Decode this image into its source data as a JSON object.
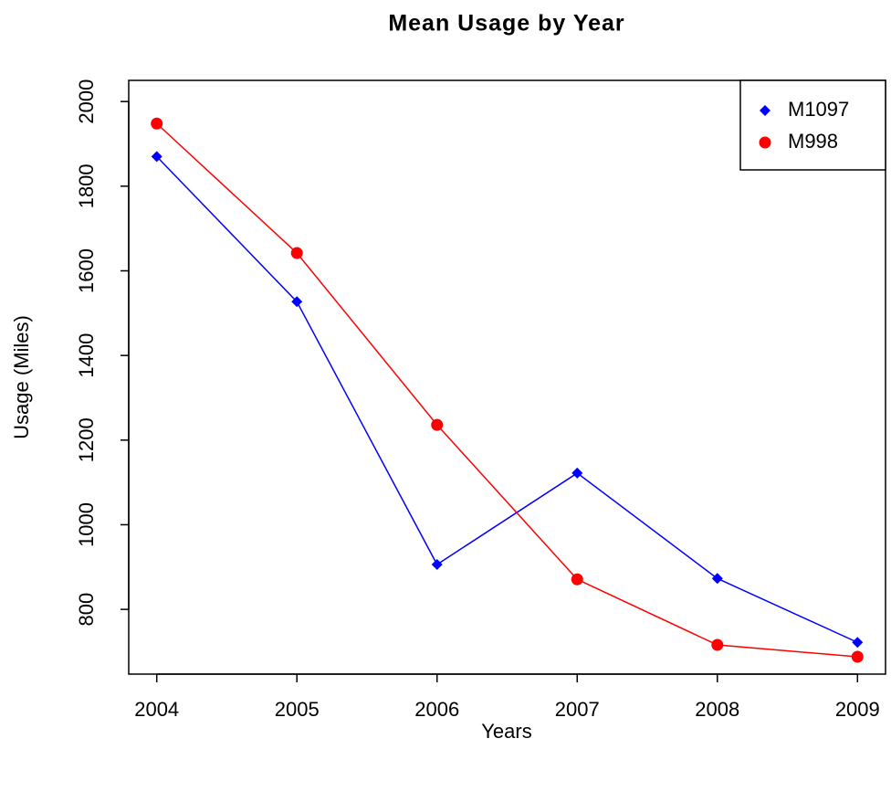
{
  "chart_data": {
    "type": "line",
    "title": "Mean Usage by Year",
    "x_label": "Years",
    "y_label": "Usage (Miles)",
    "x": [
      2004,
      2005,
      2006,
      2007,
      2008,
      2009
    ],
    "series": [
      {
        "name": "M1097",
        "color": "#0000ff",
        "marker": "diamond",
        "values": [
          1870,
          1527,
          906,
          1122,
          873,
          722
        ]
      },
      {
        "name": "M998",
        "color": "#ff0000",
        "marker": "circle",
        "values": [
          1948,
          1642,
          1236,
          871,
          716,
          688
        ]
      }
    ],
    "xlim": [
      2003.8,
      2009.2
    ],
    "xticks": [
      2004,
      2005,
      2006,
      2007,
      2008,
      2009
    ],
    "ylim": [
      647,
      2050
    ],
    "yticks": [
      800,
      1000,
      1200,
      1400,
      1600,
      1800,
      2000
    ],
    "grid": false,
    "legend_position": "top-right"
  }
}
